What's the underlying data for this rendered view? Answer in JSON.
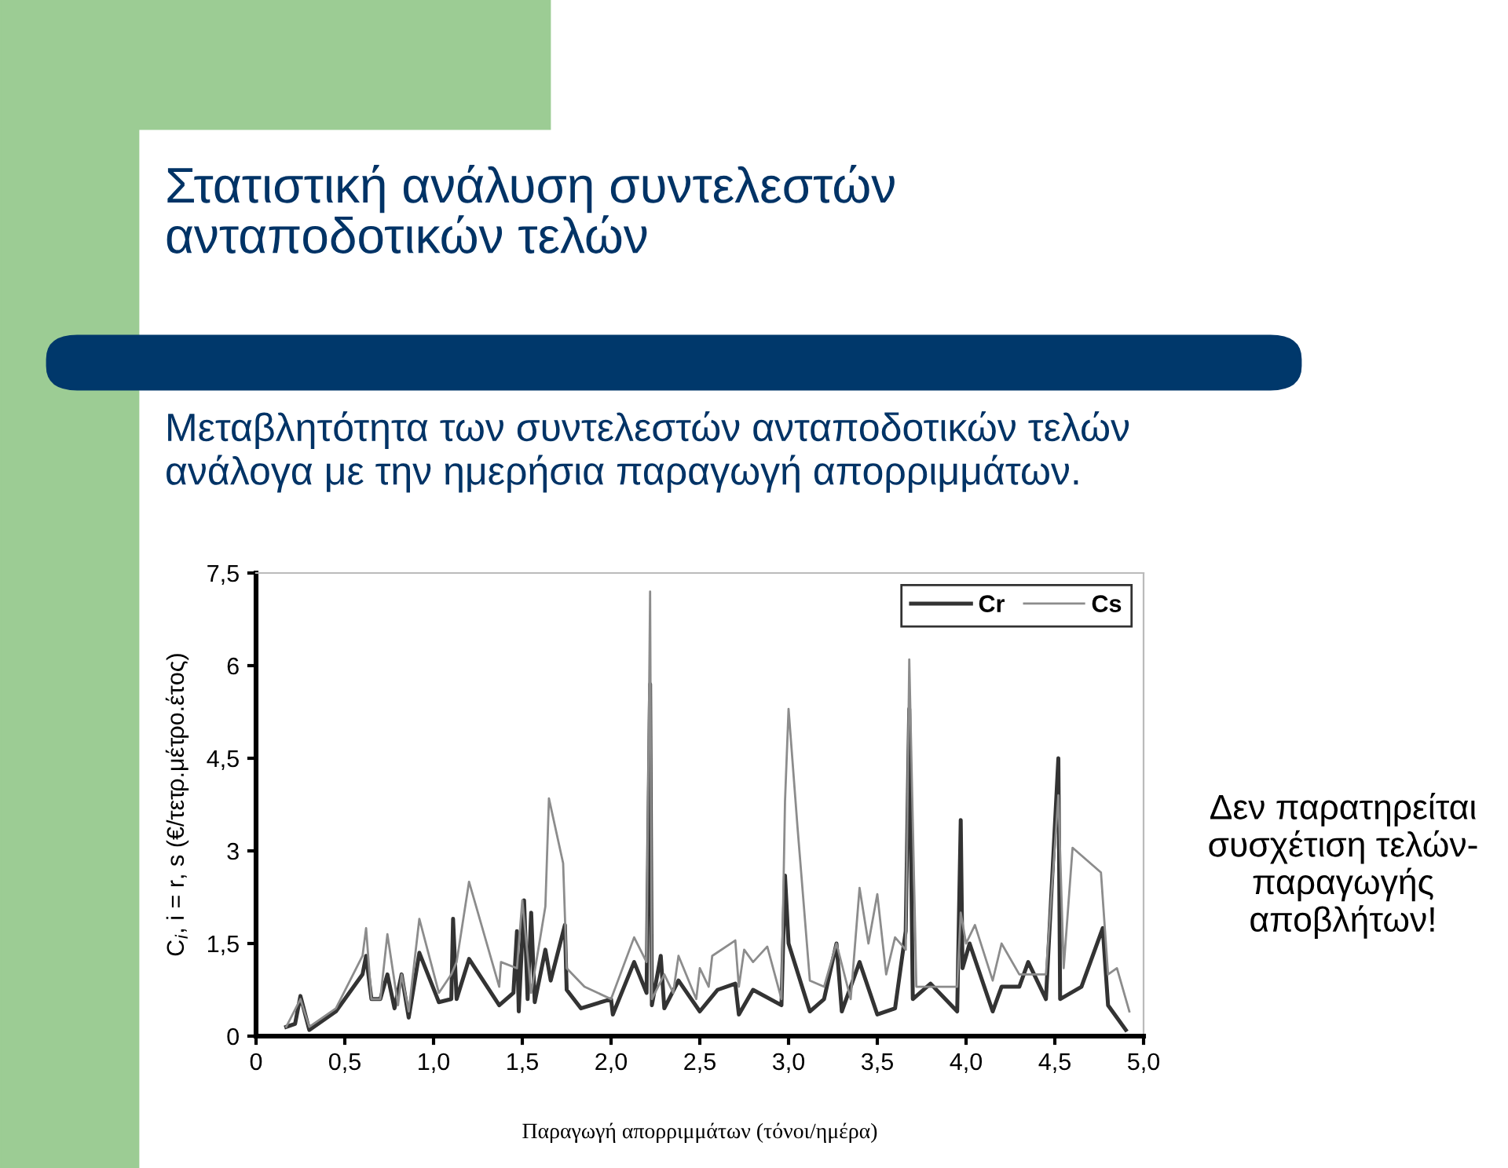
{
  "chart_data": {
    "type": "line",
    "title": "Στατιστική ανάλυση συντελεστών\nανταποδοτικών τελών",
    "subtitle": "Μεταβλητότητα των συντελεστών ανταποδοτικών τελών\nανάλογα με την ημερήσια παραγωγή απορριμμάτων.",
    "xlabel": "Παραγωγή απορριμμάτων (τόνοι/ημέρα)",
    "ylabel": "C$_{i}$, i = r, s (€/τετρ.μέτρο.έτος)",
    "annotations": [
      "Δεν παρατηρείται\nσυσχέτιση τελών-\nπαραγωγής\nαποβλήτων!"
    ],
    "series": [
      {
        "name": "Cr",
        "color": "#333333",
        "x": [
          0.17,
          0.22,
          0.25,
          0.3,
          0.45,
          0.6,
          0.62,
          0.65,
          0.7,
          0.74,
          0.78,
          0.82,
          0.86,
          0.92,
          1.03,
          1.1,
          1.11,
          1.13,
          1.2,
          1.37,
          1.45,
          1.47,
          1.48,
          1.51,
          1.53,
          1.55,
          1.57,
          1.63,
          1.66,
          1.74,
          1.75,
          1.83,
          2.0,
          2.01,
          2.13,
          2.2,
          2.22,
          2.23,
          2.28,
          2.3,
          2.38,
          2.5,
          2.6,
          2.7,
          2.72,
          2.8,
          2.96,
          2.98,
          3.0,
          3.12,
          3.2,
          3.27,
          3.3,
          3.4,
          3.5,
          3.6,
          3.66,
          3.68,
          3.7,
          3.8,
          3.95,
          3.97,
          3.98,
          4.02,
          4.15,
          4.2,
          4.3,
          4.35,
          4.45,
          4.52,
          4.53,
          4.65,
          4.77,
          4.8,
          4.9
        ],
        "values": [
          0.15,
          0.2,
          0.65,
          0.1,
          0.4,
          1.0,
          1.3,
          0.6,
          0.6,
          1.0,
          0.45,
          1.0,
          0.3,
          1.35,
          0.55,
          0.6,
          1.9,
          0.6,
          1.25,
          0.5,
          0.7,
          1.7,
          0.4,
          2.2,
          0.6,
          2.0,
          0.55,
          1.4,
          0.9,
          1.8,
          0.75,
          0.45,
          0.6,
          0.35,
          1.2,
          0.7,
          5.7,
          0.5,
          1.3,
          0.45,
          0.9,
          0.4,
          0.75,
          0.85,
          0.35,
          0.75,
          0.5,
          2.6,
          1.5,
          0.4,
          0.6,
          1.5,
          0.4,
          1.2,
          0.35,
          0.45,
          1.7,
          5.3,
          0.6,
          0.85,
          0.4,
          3.5,
          1.1,
          1.5,
          0.4,
          0.8,
          0.8,
          1.2,
          0.6,
          4.5,
          0.6,
          0.8,
          1.75,
          0.5,
          0.1
        ]
      },
      {
        "name": "Cs",
        "color": "#8c8c8c",
        "x": [
          0.17,
          0.25,
          0.3,
          0.45,
          0.6,
          0.62,
          0.65,
          0.7,
          0.74,
          0.8,
          0.82,
          0.86,
          0.92,
          1.03,
          1.1,
          1.13,
          1.2,
          1.37,
          1.38,
          1.47,
          1.5,
          1.55,
          1.63,
          1.65,
          1.73,
          1.75,
          1.85,
          2.0,
          2.13,
          2.2,
          2.22,
          2.23,
          2.3,
          2.35,
          2.38,
          2.48,
          2.5,
          2.55,
          2.57,
          2.7,
          2.72,
          2.75,
          2.8,
          2.88,
          2.96,
          2.98,
          3.0,
          3.05,
          3.12,
          3.2,
          3.27,
          3.35,
          3.4,
          3.45,
          3.5,
          3.55,
          3.6,
          3.66,
          3.68,
          3.72,
          3.95,
          3.97,
          4.0,
          4.05,
          4.15,
          4.2,
          4.3,
          4.45,
          4.52,
          4.55,
          4.6,
          4.76,
          4.8,
          4.85,
          4.92
        ],
        "values": [
          0.15,
          0.6,
          0.15,
          0.45,
          1.3,
          1.75,
          0.6,
          0.6,
          1.65,
          0.5,
          1.0,
          0.4,
          1.9,
          0.7,
          1.0,
          1.2,
          2.5,
          0.8,
          1.2,
          1.1,
          2.2,
          0.7,
          2.1,
          3.85,
          2.8,
          1.1,
          0.8,
          0.6,
          1.6,
          1.2,
          7.2,
          0.6,
          1.0,
          0.7,
          1.3,
          0.6,
          1.1,
          0.8,
          1.3,
          1.55,
          0.8,
          1.4,
          1.2,
          1.45,
          0.6,
          3.8,
          5.3,
          3.4,
          0.9,
          0.8,
          1.5,
          0.6,
          2.4,
          1.5,
          2.3,
          1.0,
          1.6,
          1.4,
          6.1,
          0.8,
          0.8,
          2.0,
          1.5,
          1.8,
          0.9,
          1.5,
          1.0,
          1.0,
          3.9,
          1.1,
          3.05,
          2.65,
          1.0,
          1.1,
          0.4
        ]
      }
    ],
    "xlim": [
      0,
      5.0
    ],
    "ylim": [
      0,
      7.5
    ],
    "xticks": [
      0,
      {
        "value": 0.5,
        "label": "0,5"
      },
      {
        "value": 1.0,
        "label": "1,0"
      },
      {
        "value": 1.5,
        "label": "1,5"
      },
      {
        "value": 2.0,
        "label": "2,0"
      },
      {
        "value": 2.5,
        "label": "2,5"
      },
      {
        "value": 3.0,
        "label": "3,0"
      },
      {
        "value": 3.5,
        "label": "3,5"
      },
      {
        "value": 4.0,
        "label": "4,0"
      },
      {
        "value": 4.5,
        "label": "4,5"
      },
      {
        "value": 5.0,
        "label": "5,0"
      }
    ],
    "yticks": [
      0,
      {
        "value": 1.5,
        "label": "1,5"
      },
      3,
      {
        "value": 4.5,
        "label": "4,5"
      },
      6,
      {
        "value": 7.5,
        "label": "7,5"
      }
    ],
    "grid": false,
    "legend": "top right",
    "marker": "none",
    "line_style": "solid"
  }
}
